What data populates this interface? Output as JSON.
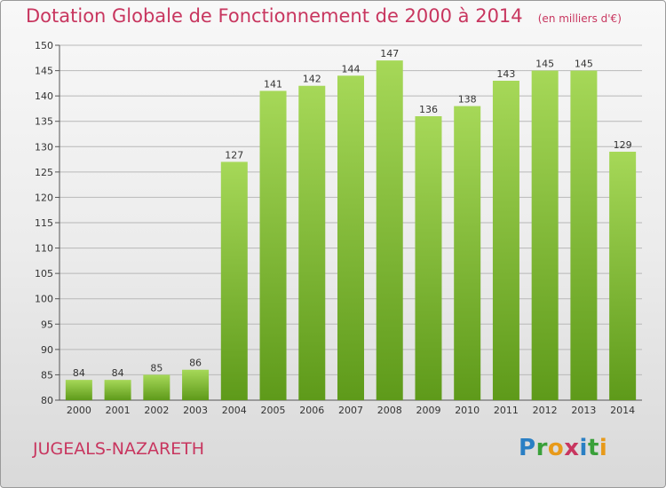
{
  "header": {
    "title": "Dotation Globale de Fonctionnement de 2000 à 2014",
    "unit": "(en milliers d'€)"
  },
  "footer": {
    "commune": "JUGEALS-NAZARETH",
    "logo": [
      "P",
      "r",
      "o",
      "x",
      "i",
      "t",
      "i"
    ],
    "logo_colors": [
      "#2a7fc4",
      "#3aa03a",
      "#e89a1a",
      "#c8365f",
      "#2a7fc4",
      "#3aa03a",
      "#e89a1a"
    ]
  },
  "colors": {
    "title": "#c8365f",
    "bar_top": "#a6d858",
    "bar_bottom": "#5e9a1a",
    "grid": "#b8b8b8"
  },
  "chart_data": {
    "type": "bar",
    "categories": [
      "2000",
      "2001",
      "2002",
      "2003",
      "2004",
      "2005",
      "2006",
      "2007",
      "2008",
      "2009",
      "2010",
      "2011",
      "2012",
      "2013",
      "2014"
    ],
    "values": [
      84,
      84,
      85,
      86,
      127,
      141,
      142,
      144,
      147,
      136,
      138,
      143,
      145,
      145,
      129
    ],
    "ylim": [
      80,
      150
    ],
    "yticks": [
      80,
      85,
      90,
      95,
      100,
      105,
      110,
      115,
      120,
      125,
      130,
      135,
      140,
      145,
      150
    ],
    "grid": true,
    "data_labels": true
  }
}
